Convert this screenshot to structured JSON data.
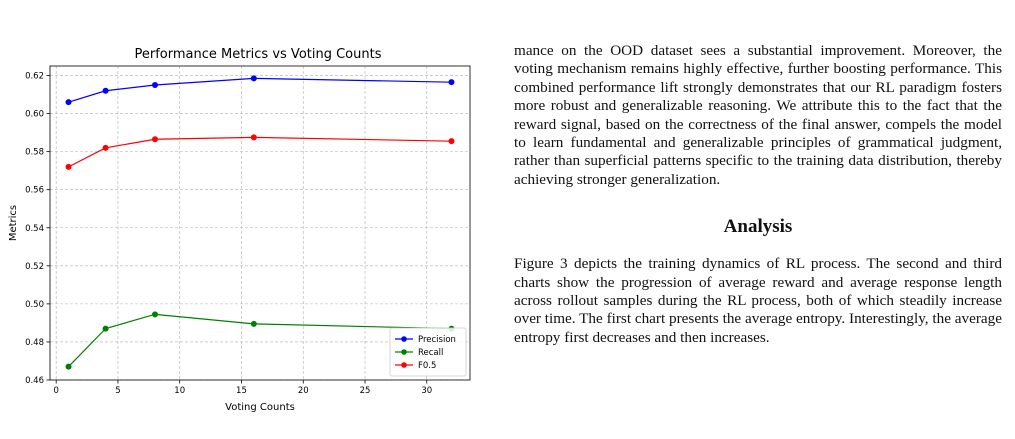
{
  "top_remnant": "",
  "chart_data": {
    "type": "line",
    "title": "Performance Metrics vs Voting Counts",
    "xlabel": "Voting Counts",
    "ylabel": "Metrics",
    "xlim": [
      -0.5,
      33.5
    ],
    "ylim": [
      0.46,
      0.625
    ],
    "xticks": [
      0,
      5,
      10,
      15,
      20,
      25,
      30
    ],
    "yticks": [
      0.46,
      0.48,
      0.5,
      0.52,
      0.54,
      0.56,
      0.58,
      0.6,
      0.62
    ],
    "grid": true,
    "legend_position": "lower-right",
    "x": [
      1,
      4,
      8,
      16,
      32
    ],
    "series": [
      {
        "name": "Precision",
        "color": "#0000ff",
        "values": [
          0.606,
          0.612,
          0.615,
          0.6185,
          0.6165
        ]
      },
      {
        "name": "Recall",
        "color": "#008000",
        "values": [
          0.467,
          0.487,
          0.4945,
          0.4895,
          0.487
        ]
      },
      {
        "name": "F0.5",
        "color": "#ff0000",
        "values": [
          0.572,
          0.582,
          0.5865,
          0.5875,
          0.5855
        ]
      }
    ]
  },
  "text": {
    "para1": "mance on the OOD dataset sees a substantial improvement. Moreover, the voting mechanism remains highly effective, further boosting performance. This combined performance lift strongly demonstrates that our RL paradigm fosters more robust and generalizable reasoning. We attribute this to the fact that the reward signal, based on the correctness of the final answer, compels the model to learn fundamental and generalizable principles of grammatical judgment, rather than superficial patterns specific to the training data distribution, thereby achieving stronger generalization.",
    "heading": "Analysis",
    "para2": "Figure 3 depicts the training dynamics of RL process. The second and third charts show the progression of average reward and average response length across rollout samples during the RL process, both of which steadily increase over time. The first chart presents the average entropy. Interestingly, the average entropy first decreases and then increases."
  }
}
